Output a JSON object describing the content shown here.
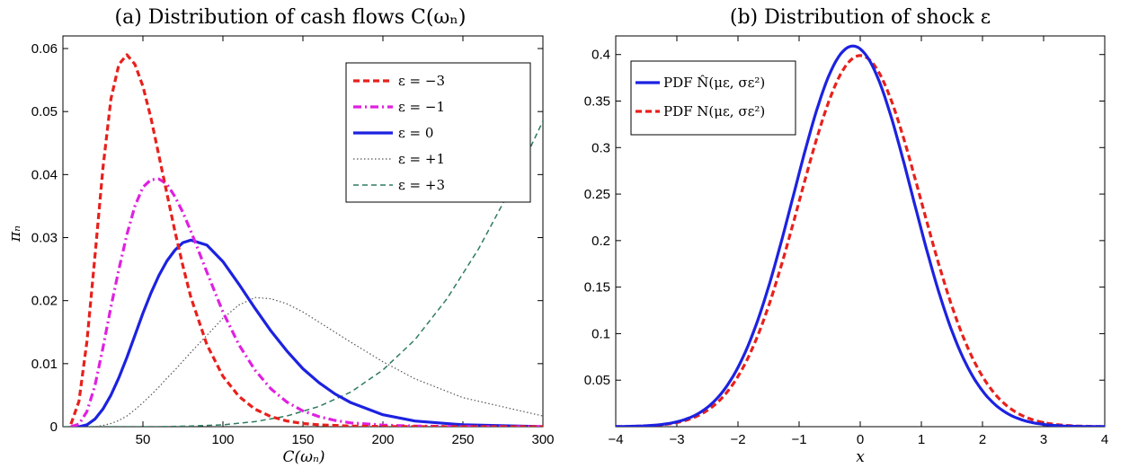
{
  "chart_data": [
    {
      "type": "line",
      "title": "(a) Distribution of cash flows C(ωₙ)",
      "xlabel": "C(ωₙ)",
      "ylabel": "πₙ",
      "xlim": [
        0,
        300
      ],
      "ylim": [
        0,
        0.062
      ],
      "xticks": [
        50,
        100,
        150,
        200,
        250,
        300
      ],
      "yticks": [
        0,
        0.01,
        0.02,
        0.03,
        0.04,
        0.05,
        0.06
      ],
      "legend_position": "top-right",
      "series": [
        {
          "name": "ε = −3",
          "color": "#e8201c",
          "dash": "dashed-thick",
          "peak_x": 40,
          "peak_y": 0.059,
          "x": [
            5,
            10,
            15,
            20,
            25,
            30,
            35,
            40,
            45,
            50,
            55,
            60,
            65,
            70,
            75,
            80,
            90,
            100,
            110,
            120,
            130,
            140,
            150,
            160,
            170,
            180,
            200,
            220,
            250,
            300
          ],
          "y": [
            0.0004,
            0.004,
            0.0135,
            0.027,
            0.041,
            0.052,
            0.0575,
            0.059,
            0.0575,
            0.054,
            0.049,
            0.043,
            0.037,
            0.031,
            0.0255,
            0.0205,
            0.013,
            0.008,
            0.0048,
            0.0028,
            0.0016,
            0.0009,
            0.0005,
            0.0003,
            0.0002,
            0.0001,
            3e-05,
            1e-05,
            0,
            0
          ]
        },
        {
          "name": "ε = −1",
          "color": "#e020e0",
          "dash": "dash-dot",
          "peak_x": 60,
          "peak_y": 0.0393,
          "x": [
            5,
            10,
            15,
            20,
            25,
            30,
            35,
            40,
            45,
            50,
            55,
            60,
            65,
            70,
            75,
            80,
            90,
            100,
            110,
            120,
            130,
            140,
            150,
            160,
            170,
            180,
            200,
            220,
            250,
            300
          ],
          "y": [
            0,
            0.0004,
            0.0024,
            0.0065,
            0.0125,
            0.019,
            0.025,
            0.0305,
            0.035,
            0.038,
            0.0392,
            0.0393,
            0.0385,
            0.0365,
            0.034,
            0.031,
            0.0245,
            0.0182,
            0.013,
            0.009,
            0.006,
            0.0039,
            0.0025,
            0.0016,
            0.001,
            0.0006,
            0.00025,
            0.0001,
            2e-05,
            0
          ]
        },
        {
          "name": "ε = 0",
          "color": "#1c22e0",
          "dash": "solid-thick",
          "peak_x": 80,
          "peak_y": 0.0296,
          "x": [
            5,
            10,
            15,
            20,
            25,
            30,
            35,
            40,
            45,
            50,
            55,
            60,
            65,
            70,
            75,
            80,
            90,
            100,
            110,
            120,
            130,
            140,
            150,
            160,
            170,
            180,
            200,
            220,
            250,
            300
          ],
          "y": [
            0,
            0,
            0.0003,
            0.0012,
            0.0028,
            0.005,
            0.0078,
            0.011,
            0.0145,
            0.018,
            0.0212,
            0.024,
            0.0263,
            0.028,
            0.0292,
            0.0296,
            0.0288,
            0.0262,
            0.0226,
            0.0188,
            0.0152,
            0.012,
            0.0092,
            0.007,
            0.0052,
            0.0038,
            0.0019,
            0.0009,
            0.0003,
            0
          ]
        },
        {
          "name": "ε = +1",
          "color": "#555555",
          "dash": "dotted",
          "peak_x": 120,
          "peak_y": 0.0205,
          "x": [
            5,
            10,
            15,
            20,
            25,
            30,
            35,
            40,
            45,
            50,
            55,
            60,
            65,
            70,
            75,
            80,
            90,
            100,
            110,
            120,
            130,
            140,
            150,
            160,
            170,
            180,
            200,
            220,
            250,
            300
          ],
          "y": [
            0,
            0,
            0,
            0,
            0.0002,
            0.0005,
            0.001,
            0.0017,
            0.0027,
            0.0038,
            0.005,
            0.0063,
            0.0077,
            0.009,
            0.0104,
            0.0118,
            0.0145,
            0.0172,
            0.0193,
            0.0205,
            0.0203,
            0.0195,
            0.0182,
            0.0166,
            0.015,
            0.0134,
            0.0103,
            0.0076,
            0.0046,
            0.0017
          ]
        },
        {
          "name": "ε = +3",
          "color": "#2e7b5e",
          "dash": "dashed",
          "peak_x": 300,
          "peak_y": 0.0485,
          "x": [
            0,
            20,
            40,
            60,
            80,
            100,
            120,
            140,
            160,
            180,
            200,
            220,
            240,
            260,
            280,
            300
          ],
          "y": [
            0,
            0,
            0,
            0,
            0.0001,
            0.0003,
            0.0008,
            0.0017,
            0.0032,
            0.0055,
            0.009,
            0.0138,
            0.0203,
            0.0283,
            0.0378,
            0.0485
          ]
        }
      ]
    },
    {
      "type": "line",
      "title": "(b) Distribution of shock ε",
      "xlabel": "x",
      "ylabel": "",
      "xlim": [
        -4,
        4
      ],
      "ylim": [
        0,
        0.42
      ],
      "xticks": [
        -4,
        -3,
        -2,
        -1,
        0,
        1,
        2,
        3,
        4
      ],
      "yticks": [
        0.05,
        0.1,
        0.15,
        0.2,
        0.25,
        0.3,
        0.35,
        0.4
      ],
      "legend_position": "top-left",
      "series": [
        {
          "name": "PDF N̂(με, σε²)",
          "color": "#1c22e0",
          "dash": "solid-thick",
          "mu": -0.12,
          "sigma": 0.975
        },
        {
          "name": "PDF N(με, σε²)",
          "color": "#e8201c",
          "dash": "dashed-thick",
          "mu": 0,
          "sigma": 1
        }
      ]
    }
  ]
}
